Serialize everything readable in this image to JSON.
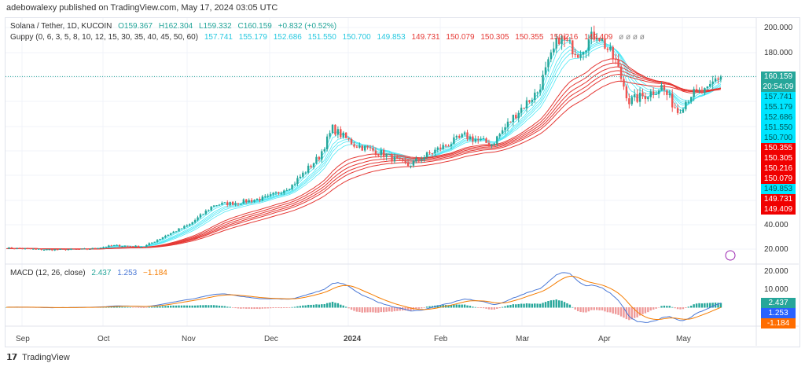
{
  "header": {
    "published": "adebowalexy published on TradingView.com, May 17, 2024 03:05 UTC"
  },
  "legend": {
    "symbol": "Solana / Tether, 1D, KUCOIN",
    "open": "O159.367",
    "high": "H162.304",
    "low": "L159.332",
    "close": "C160.159",
    "change": "+0.832 (+0.52%)",
    "guppy_label": "Guppy (0, 6, 3, 5, 8, 10, 12, 15, 30, 35, 40, 45, 50, 60)",
    "guppy_short": [
      "157.741",
      "155.179",
      "152.686",
      "151.550",
      "150.700",
      "149.853"
    ],
    "guppy_long": [
      "149.731",
      "150.079",
      "150.305",
      "150.355",
      "150.216",
      "149.409"
    ],
    "guppy_extra": "ø ø ø ø",
    "macd_label": "MACD (12, 26, close)",
    "macd": "2.437",
    "signal": "1.253",
    "hist": "−1.184"
  },
  "price_axis": {
    "ticks": [
      "200.000",
      "180.000",
      "40.000",
      "20.000"
    ]
  },
  "price_tags": [
    {
      "v": "160.159",
      "sub": "20:54:09",
      "color": "#26a69a"
    },
    {
      "v": "157.741",
      "color": "#00e5ff"
    },
    {
      "v": "155.179",
      "color": "#00e5ff"
    },
    {
      "v": "152.686",
      "color": "#00e5ff"
    },
    {
      "v": "151.550",
      "color": "#00e5ff"
    },
    {
      "v": "150.700",
      "color": "#00e5ff"
    },
    {
      "v": "150.355",
      "color": "#f00000"
    },
    {
      "v": "150.305",
      "color": "#f00000"
    },
    {
      "v": "150.216",
      "color": "#f00000"
    },
    {
      "v": "150.079",
      "color": "#f00000"
    },
    {
      "v": "149.853",
      "color": "#00e5ff"
    },
    {
      "v": "149.731",
      "color": "#f00000"
    },
    {
      "v": "149.409",
      "color": "#f00000"
    }
  ],
  "macd_axis": {
    "ticks": [
      "20.000",
      "10.000"
    ]
  },
  "macd_tags": [
    {
      "v": "2.437",
      "color": "#26a69a"
    },
    {
      "v": "1.253",
      "color": "#2962ff"
    },
    {
      "v": "-1.184",
      "color": "#ff6d00"
    }
  ],
  "time_axis": [
    "Sep",
    "Oct",
    "Nov",
    "Dec",
    "2024",
    "Feb",
    "Mar",
    "Apr",
    "May"
  ],
  "footer": {
    "brand": "TradingView",
    "logo": "TV"
  },
  "colors": {
    "up": "#26a69a",
    "down": "#ef5350",
    "guppy_short": "#4de8f5",
    "guppy_long": "#e53935",
    "macd": "#4a78d6",
    "signal": "#f57c00"
  },
  "chart_data": {
    "type": "candlestick",
    "symbol": "SOL/USDT 1D",
    "ylim": [
      10,
      210
    ],
    "approx_closes": [
      [
        "2023-08-26",
        21
      ],
      [
        "2023-09-10",
        19.5
      ],
      [
        "2023-09-25",
        20
      ],
      [
        "2023-10-05",
        23
      ],
      [
        "2023-10-16",
        22
      ],
      [
        "2023-10-24",
        31
      ],
      [
        "2023-11-02",
        40
      ],
      [
        "2023-11-11",
        56
      ],
      [
        "2023-11-20",
        58
      ],
      [
        "2023-12-01",
        62
      ],
      [
        "2023-12-10",
        72
      ],
      [
        "2023-12-20",
        95
      ],
      [
        "2023-12-25",
        118
      ],
      [
        "2024-01-02",
        105
      ],
      [
        "2024-01-12",
        98
      ],
      [
        "2024-01-22",
        88
      ],
      [
        "2024-02-01",
        100
      ],
      [
        "2024-02-12",
        112
      ],
      [
        "2024-02-22",
        105
      ],
      [
        "2024-03-02",
        130
      ],
      [
        "2024-03-10",
        148
      ],
      [
        "2024-03-18",
        192
      ],
      [
        "2024-03-25",
        180
      ],
      [
        "2024-04-01",
        196
      ],
      [
        "2024-04-08",
        172
      ],
      [
        "2024-04-13",
        140
      ],
      [
        "2024-04-20",
        146
      ],
      [
        "2024-04-25",
        152
      ],
      [
        "2024-05-01",
        132
      ],
      [
        "2024-05-06",
        146
      ],
      [
        "2024-05-12",
        148
      ],
      [
        "2024-05-15",
        158
      ],
      [
        "2024-05-17",
        160.159
      ]
    ],
    "macd_range": [
      -10,
      22
    ]
  }
}
